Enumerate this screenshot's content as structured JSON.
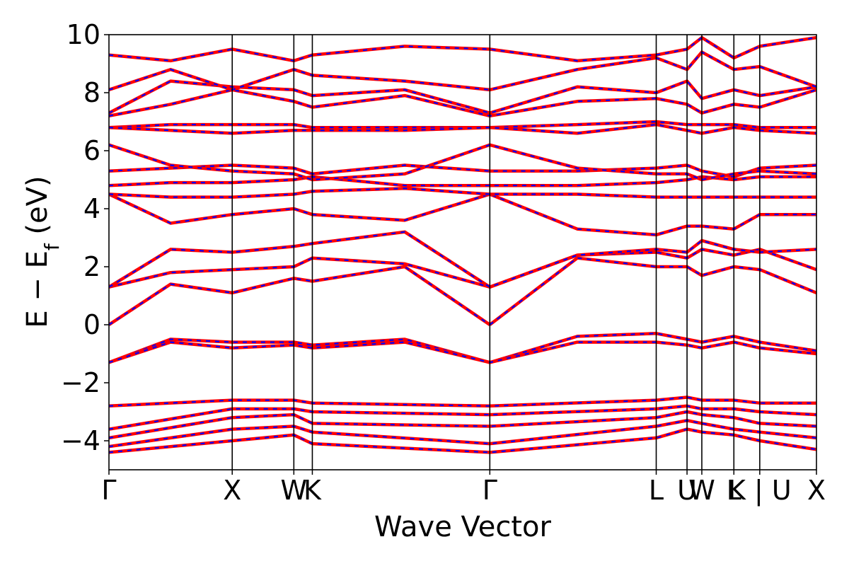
{
  "chart_data": {
    "type": "line",
    "xlabel": "Wave Vector",
    "ylabel": {
      "main": "E − E",
      "sub": "f",
      "unit": " (eV)"
    },
    "ylim": [
      -5,
      10
    ],
    "yticks": [
      -4,
      -2,
      0,
      2,
      4,
      6,
      8,
      10
    ],
    "ytick_labels": [
      "−4",
      "−2",
      "0",
      "2",
      "4",
      "6",
      "8",
      "10"
    ],
    "kpath": [
      {
        "label": "Γ",
        "pos": 0.0
      },
      {
        "label": "X",
        "pos": 1.0
      },
      {
        "label": "W",
        "pos": 1.5
      },
      {
        "label": "K",
        "pos": 1.65
      },
      {
        "label": "Γ",
        "pos": 3.09
      },
      {
        "label": "L",
        "pos": 4.44
      },
      {
        "label": "U",
        "pos": 4.69
      },
      {
        "label": "W",
        "pos": 4.81
      },
      {
        "label": "L",
        "pos": 5.07
      },
      {
        "label": "K | U",
        "pos": 5.28
      },
      {
        "label": "X",
        "pos": 5.74
      }
    ],
    "grid": false,
    "legend": "none",
    "series_style": {
      "line_color": "#ff0000",
      "dash_color": "#0000ff"
    },
    "bands": [
      {
        "x": [
          0,
          1.0,
          1.5,
          1.65,
          3.09,
          4.44,
          4.69,
          4.81,
          5.07,
          5.28,
          5.74
        ],
        "y": [
          -4.4,
          -4.0,
          -3.8,
          -4.1,
          -4.4,
          -3.9,
          -3.6,
          -3.7,
          -3.8,
          -4.0,
          -4.3
        ]
      },
      {
        "x": [
          0,
          1.0,
          1.5,
          1.65,
          3.09,
          4.44,
          4.69,
          4.81,
          5.07,
          5.28,
          5.74
        ],
        "y": [
          -4.2,
          -3.6,
          -3.5,
          -3.7,
          -4.1,
          -3.5,
          -3.3,
          -3.4,
          -3.6,
          -3.7,
          -3.9
        ]
      },
      {
        "x": [
          0,
          1.0,
          1.5,
          1.65,
          3.09,
          4.44,
          4.69,
          4.81,
          5.07,
          5.28,
          5.74
        ],
        "y": [
          -3.9,
          -3.2,
          -3.1,
          -3.4,
          -3.5,
          -3.2,
          -3.0,
          -3.1,
          -3.2,
          -3.4,
          -3.5
        ]
      },
      {
        "x": [
          0,
          1.0,
          1.5,
          1.65,
          3.09,
          4.44,
          4.69,
          4.81,
          5.07,
          5.28,
          5.74
        ],
        "y": [
          -3.6,
          -2.9,
          -2.9,
          -3.0,
          -3.1,
          -2.9,
          -2.8,
          -2.9,
          -2.9,
          -3.0,
          -3.1
        ]
      },
      {
        "x": [
          0,
          1.0,
          1.5,
          1.65,
          3.09,
          4.44,
          4.69,
          4.81,
          5.07,
          5.28,
          5.74
        ],
        "y": [
          -2.8,
          -2.6,
          -2.6,
          -2.7,
          -2.8,
          -2.6,
          -2.5,
          -2.6,
          -2.6,
          -2.7,
          -2.7
        ]
      },
      {
        "x": [
          0,
          0.5,
          1.0,
          1.5,
          1.65,
          2.4,
          3.09,
          3.8,
          4.44,
          4.69,
          4.81,
          5.07,
          5.28,
          5.74
        ],
        "y": [
          -1.3,
          -0.5,
          -0.6,
          -0.6,
          -0.7,
          -0.5,
          -1.3,
          -0.4,
          -0.3,
          -0.5,
          -0.6,
          -0.4,
          -0.6,
          -0.9
        ]
      },
      {
        "x": [
          0,
          0.5,
          1.0,
          1.5,
          1.65,
          2.4,
          3.09,
          3.8,
          4.44,
          4.69,
          4.81,
          5.07,
          5.28,
          5.74
        ],
        "y": [
          -1.3,
          -0.6,
          -0.8,
          -0.7,
          -0.8,
          -0.6,
          -1.3,
          -0.6,
          -0.6,
          -0.7,
          -0.8,
          -0.6,
          -0.8,
          -1.0
        ]
      },
      {
        "x": [
          0,
          0.5,
          1.0,
          1.5,
          1.65,
          2.4,
          3.09
        ],
        "y": [
          0.0,
          1.4,
          1.1,
          1.6,
          1.5,
          2.0,
          0.0
        ]
      },
      {
        "x": [
          3.09,
          3.8,
          4.44,
          4.69,
          4.81,
          5.07,
          5.28,
          5.74
        ],
        "y": [
          0.0,
          2.3,
          2.0,
          2.0,
          1.7,
          2.0,
          1.9,
          1.1
        ]
      },
      {
        "x": [
          0,
          0.5,
          1.0,
          1.5,
          1.65,
          2.4,
          3.09,
          3.8,
          4.44,
          4.69,
          4.81,
          5.07,
          5.28,
          5.74
        ],
        "y": [
          1.3,
          1.8,
          1.9,
          2.0,
          2.3,
          2.1,
          1.3,
          2.4,
          2.5,
          2.3,
          2.6,
          2.4,
          2.6,
          1.9
        ]
      },
      {
        "x": [
          0,
          0.5,
          1.0,
          1.5,
          1.65,
          2.4,
          3.09,
          3.8,
          4.44,
          4.69,
          4.81,
          5.07,
          5.28,
          5.74
        ],
        "y": [
          1.3,
          2.6,
          2.5,
          2.7,
          2.8,
          3.2,
          1.3,
          2.4,
          2.6,
          2.5,
          2.9,
          2.6,
          2.5,
          2.6
        ]
      },
      {
        "x": [
          0,
          0.5,
          1.0,
          1.5,
          1.65,
          2.4,
          3.09,
          3.8,
          4.44,
          4.69,
          4.81,
          5.07,
          5.28,
          5.74
        ],
        "y": [
          4.5,
          3.5,
          3.8,
          4.0,
          3.8,
          3.6,
          4.5,
          3.3,
          3.1,
          3.4,
          3.4,
          3.3,
          3.8,
          3.8
        ]
      },
      {
        "x": [
          0,
          0.5,
          1.0,
          1.5,
          1.65,
          2.4,
          3.09,
          3.8,
          4.44,
          4.69,
          4.81,
          5.07,
          5.28,
          5.74
        ],
        "y": [
          4.5,
          4.4,
          4.4,
          4.5,
          4.6,
          4.7,
          4.5,
          4.5,
          4.4,
          4.4,
          4.4,
          4.4,
          4.4,
          4.4
        ]
      },
      {
        "x": [
          0,
          0.5,
          1.0,
          1.5,
          1.65,
          2.4,
          3.09,
          3.8,
          4.44,
          4.69,
          4.81,
          5.07,
          5.28,
          5.74
        ],
        "y": [
          4.8,
          4.9,
          4.9,
          5.0,
          5.1,
          4.8,
          4.8,
          4.8,
          4.9,
          5.0,
          5.1,
          5.0,
          5.1,
          5.1
        ]
      },
      {
        "x": [
          0,
          0.5,
          1.0,
          1.5,
          1.65,
          2.4,
          3.09,
          3.8,
          4.44,
          4.69,
          4.81,
          5.07,
          5.28,
          5.74
        ],
        "y": [
          5.3,
          5.4,
          5.5,
          5.4,
          5.2,
          5.5,
          5.3,
          5.3,
          5.4,
          5.5,
          5.3,
          5.1,
          5.4,
          5.5
        ]
      },
      {
        "x": [
          0,
          0.5,
          1.0,
          1.5,
          1.65,
          2.4,
          3.09,
          3.8,
          4.44,
          4.69,
          4.81,
          5.07,
          5.28,
          5.74
        ],
        "y": [
          6.2,
          5.5,
          5.3,
          5.2,
          5.0,
          5.2,
          6.2,
          5.4,
          5.2,
          5.2,
          5.0,
          5.2,
          5.3,
          5.2
        ]
      },
      {
        "x": [
          0,
          0.5,
          1.0,
          1.5,
          1.65,
          2.4,
          3.09,
          3.8,
          4.44,
          4.69,
          4.81,
          5.07,
          5.28,
          5.74
        ],
        "y": [
          6.8,
          6.9,
          6.9,
          6.9,
          6.8,
          6.8,
          6.8,
          6.9,
          7.0,
          6.9,
          6.9,
          6.9,
          6.8,
          6.8
        ]
      },
      {
        "x": [
          0,
          0.5,
          1.0,
          1.5,
          1.65,
          2.4,
          3.09,
          3.8,
          4.44,
          4.69,
          4.81,
          5.07,
          5.28,
          5.74
        ],
        "y": [
          6.8,
          6.7,
          6.6,
          6.7,
          6.7,
          6.7,
          6.8,
          6.6,
          6.9,
          6.7,
          6.6,
          6.8,
          6.7,
          6.6
        ]
      },
      {
        "x": [
          0,
          0.5,
          1.0,
          1.5,
          1.65,
          2.4,
          3.09,
          3.8,
          4.44,
          4.69,
          4.81,
          5.07,
          5.28,
          5.74
        ],
        "y": [
          7.2,
          7.6,
          8.1,
          7.7,
          7.5,
          7.9,
          7.2,
          7.7,
          7.8,
          7.6,
          7.3,
          7.6,
          7.5,
          8.1
        ]
      },
      {
        "x": [
          0,
          0.5,
          1.0,
          1.5,
          1.65,
          2.4,
          3.09,
          3.8,
          4.44,
          4.69,
          4.81,
          5.07,
          5.28,
          5.74
        ],
        "y": [
          7.3,
          8.4,
          8.2,
          8.1,
          7.9,
          8.1,
          7.3,
          8.2,
          8.0,
          8.4,
          7.8,
          8.1,
          7.9,
          8.2
        ]
      },
      {
        "x": [
          0,
          0.5,
          1.0,
          1.5,
          1.65,
          2.4,
          3.09,
          3.8,
          4.44,
          4.69,
          4.81,
          5.07,
          5.28,
          5.74
        ],
        "y": [
          8.1,
          8.8,
          8.1,
          8.8,
          8.6,
          8.4,
          8.1,
          8.8,
          9.2,
          8.8,
          9.4,
          8.8,
          8.9,
          8.2
        ]
      },
      {
        "x": [
          0,
          0.5,
          1.0,
          1.5,
          1.65,
          2.4,
          3.09,
          3.8,
          4.44,
          4.69,
          4.81,
          5.07,
          5.28,
          5.74
        ],
        "y": [
          9.3,
          9.1,
          9.5,
          9.1,
          9.3,
          9.6,
          9.5,
          9.1,
          9.3,
          9.5,
          9.9,
          9.2,
          9.6,
          9.9
        ]
      }
    ]
  }
}
